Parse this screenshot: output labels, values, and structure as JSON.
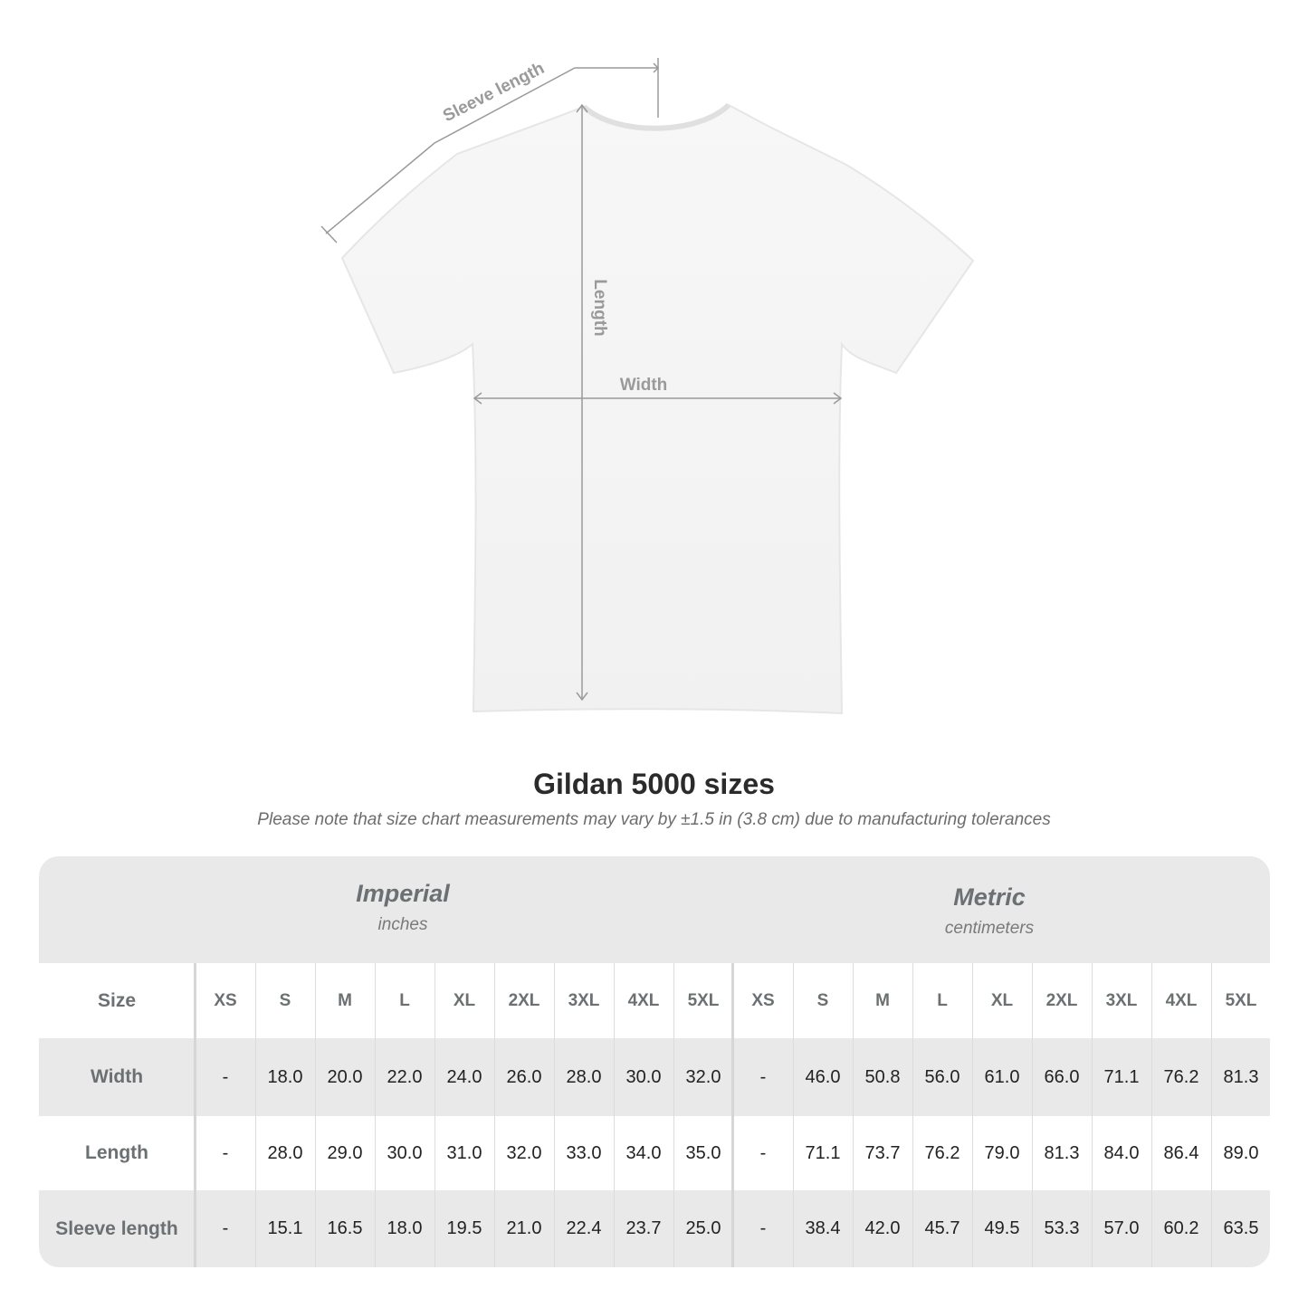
{
  "diagram": {
    "labels": {
      "sleeve": "Sleeve length",
      "length": "Length",
      "width": "Width"
    },
    "shirt_color": "#ffffff",
    "annotation_color": "#9a9a9a"
  },
  "title": "Gildan 5000 sizes",
  "note": "Please note that size chart measurements may vary by ±1.5 in (3.8 cm) due to manufacturing tolerances",
  "table": {
    "imperial": {
      "title": "Imperial",
      "unit": "inches"
    },
    "metric": {
      "title": "Metric",
      "unit": "centimeters"
    },
    "size_label": "Size",
    "sizes": [
      "XS",
      "S",
      "M",
      "L",
      "XL",
      "2XL",
      "3XL",
      "4XL",
      "5XL"
    ],
    "rows": [
      {
        "label": "Width",
        "imperial": [
          "-",
          "18.0",
          "20.0",
          "22.0",
          "24.0",
          "26.0",
          "28.0",
          "30.0",
          "32.0"
        ],
        "metric": [
          "-",
          "46.0",
          "50.8",
          "56.0",
          "61.0",
          "66.0",
          "71.1",
          "76.2",
          "81.3"
        ]
      },
      {
        "label": "Length",
        "imperial": [
          "-",
          "28.0",
          "29.0",
          "30.0",
          "31.0",
          "32.0",
          "33.0",
          "34.0",
          "35.0"
        ],
        "metric": [
          "-",
          "71.1",
          "73.7",
          "76.2",
          "79.0",
          "81.3",
          "84.0",
          "86.4",
          "89.0"
        ]
      },
      {
        "label": "Sleeve length",
        "imperial": [
          "-",
          "15.1",
          "16.5",
          "18.0",
          "19.5",
          "21.0",
          "22.4",
          "23.7",
          "25.0"
        ],
        "metric": [
          "-",
          "38.4",
          "42.0",
          "45.7",
          "49.5",
          "53.3",
          "57.0",
          "60.2",
          "63.5"
        ]
      }
    ]
  }
}
